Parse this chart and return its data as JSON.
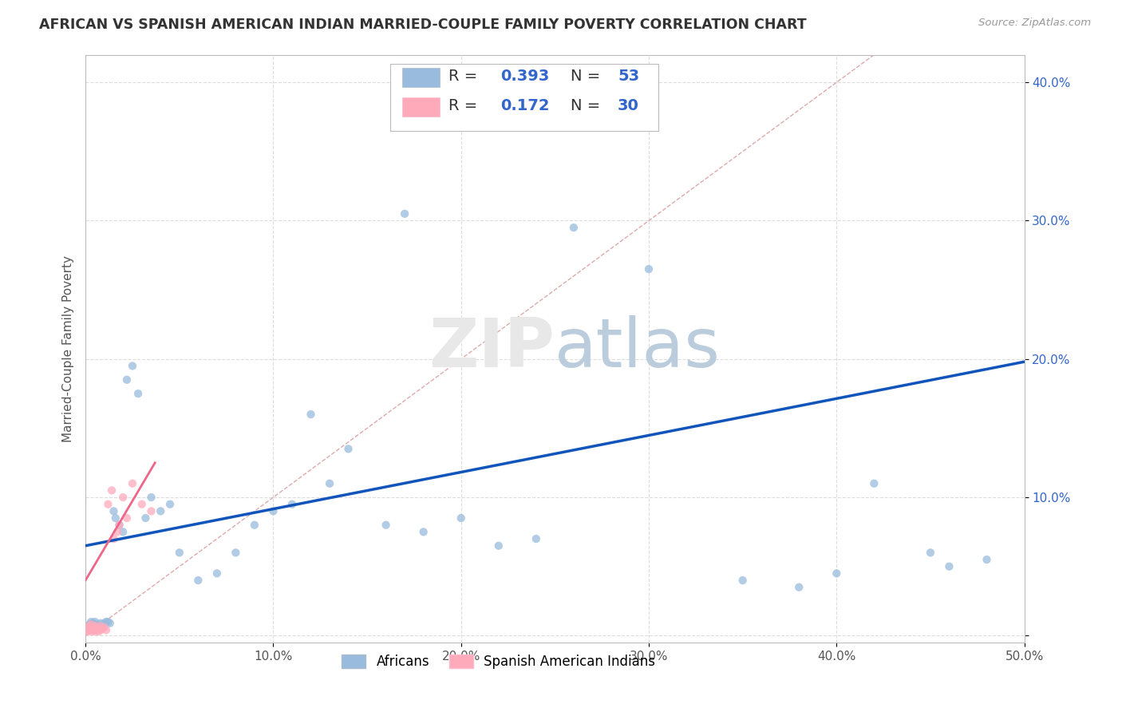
{
  "title": "AFRICAN VS SPANISH AMERICAN INDIAN MARRIED-COUPLE FAMILY POVERTY CORRELATION CHART",
  "source": "Source: ZipAtlas.com",
  "ylabel": "Married-Couple Family Poverty",
  "xlim": [
    0,
    0.5
  ],
  "ylim": [
    -0.005,
    0.42
  ],
  "xticks": [
    0.0,
    0.1,
    0.2,
    0.3,
    0.4,
    0.5
  ],
  "yticks": [
    0.0,
    0.1,
    0.2,
    0.3,
    0.4
  ],
  "xtick_labels": [
    "0.0%",
    "10.0%",
    "20.0%",
    "30.0%",
    "40.0%",
    "50.0%"
  ],
  "ytick_labels": [
    "",
    "10.0%",
    "20.0%",
    "30.0%",
    "40.0%"
  ],
  "blue_color": "#99BBDD",
  "pink_color": "#FFAABB",
  "line_blue": "#1155BB",
  "line_pink": "#EE6688",
  "diag_color": "#DDAAAA",
  "africans_x": [
    0.001,
    0.002,
    0.002,
    0.003,
    0.003,
    0.004,
    0.004,
    0.005,
    0.005,
    0.006,
    0.007,
    0.008,
    0.009,
    0.01,
    0.011,
    0.012,
    0.013,
    0.015,
    0.016,
    0.018,
    0.02,
    0.022,
    0.025,
    0.028,
    0.032,
    0.035,
    0.04,
    0.045,
    0.05,
    0.06,
    0.07,
    0.08,
    0.1,
    0.11,
    0.12,
    0.14,
    0.16,
    0.18,
    0.2,
    0.22,
    0.24,
    0.26,
    0.3,
    0.35,
    0.38,
    0.4,
    0.42,
    0.45,
    0.46,
    0.48,
    0.13,
    0.17,
    0.09
  ],
  "africans_y": [
    0.005,
    0.008,
    0.006,
    0.01,
    0.007,
    0.009,
    0.006,
    0.008,
    0.01,
    0.007,
    0.008,
    0.009,
    0.007,
    0.009,
    0.01,
    0.01,
    0.009,
    0.09,
    0.085,
    0.08,
    0.075,
    0.185,
    0.195,
    0.175,
    0.085,
    0.1,
    0.09,
    0.095,
    0.06,
    0.04,
    0.045,
    0.06,
    0.09,
    0.095,
    0.16,
    0.135,
    0.08,
    0.075,
    0.085,
    0.065,
    0.07,
    0.295,
    0.265,
    0.04,
    0.035,
    0.045,
    0.11,
    0.06,
    0.05,
    0.055,
    0.11,
    0.305,
    0.08
  ],
  "spanish_x": [
    0.001,
    0.001,
    0.002,
    0.002,
    0.003,
    0.003,
    0.003,
    0.004,
    0.004,
    0.005,
    0.005,
    0.006,
    0.006,
    0.007,
    0.007,
    0.008,
    0.008,
    0.009,
    0.01,
    0.011,
    0.012,
    0.014,
    0.015,
    0.017,
    0.018,
    0.02,
    0.022,
    0.025,
    0.03,
    0.035
  ],
  "spanish_y": [
    0.003,
    0.005,
    0.004,
    0.007,
    0.003,
    0.006,
    0.008,
    0.004,
    0.006,
    0.003,
    0.007,
    0.004,
    0.006,
    0.003,
    0.005,
    0.004,
    0.007,
    0.005,
    0.006,
    0.004,
    0.095,
    0.105,
    0.07,
    0.075,
    0.08,
    0.1,
    0.085,
    0.11,
    0.095,
    0.09
  ],
  "africans_line_x": [
    0.0,
    0.5
  ],
  "africans_line_y": [
    0.065,
    0.198
  ],
  "spanish_line_x": [
    0.0,
    0.037
  ],
  "spanish_line_y": [
    0.04,
    0.125
  ],
  "background_color": "#FFFFFF",
  "grid_color": "#DDDDDD",
  "legend1_r": "R = 0.393",
  "legend1_n": "N = 53",
  "legend2_r": "R =  0.172",
  "legend2_n": "N = 30"
}
